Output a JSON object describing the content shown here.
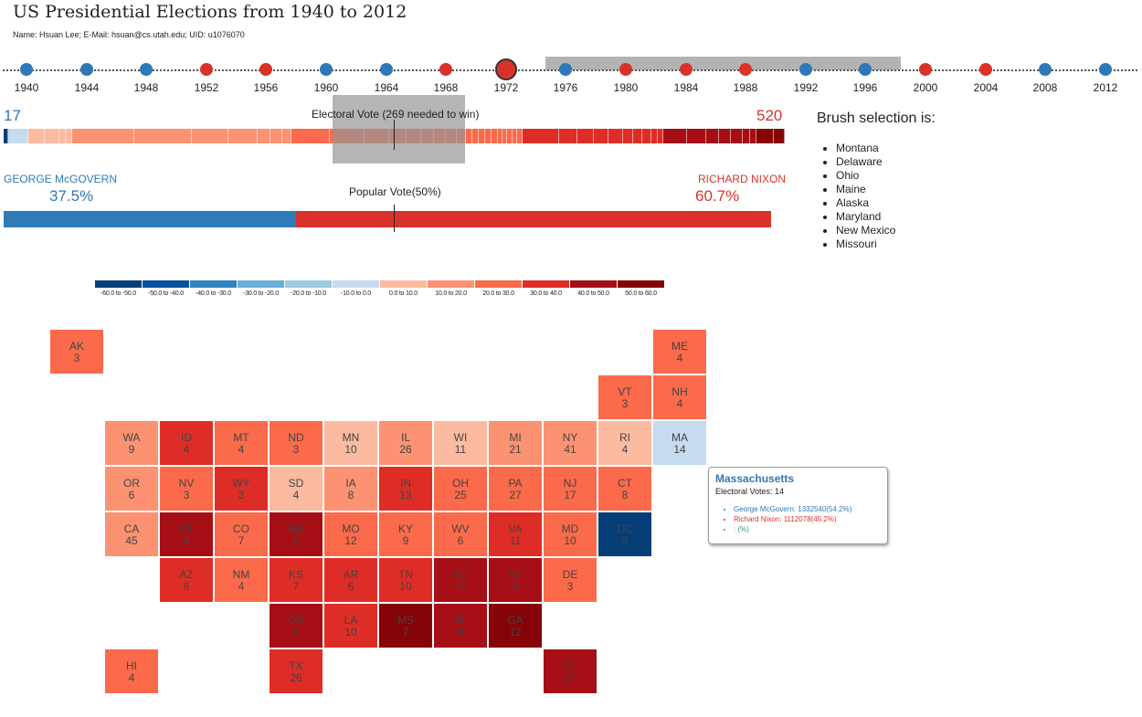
{
  "header": {
    "title": "US Presidential Elections from 1940 to 2012",
    "subtitle": "Name: Hsuan Lee; E-Mail: hsuan@cs.utah.edu; UID: u1076070"
  },
  "colors": {
    "dem": "#2f78b8",
    "rep": "#d9322a",
    "ind": "#3a9a76",
    "year_dem": "#2f78b8",
    "year_rep": "#d9322a"
  },
  "timeline": {
    "selected_year": "1972",
    "years": [
      {
        "year": "1940",
        "party": "D"
      },
      {
        "year": "1944",
        "party": "D"
      },
      {
        "year": "1948",
        "party": "D"
      },
      {
        "year": "1952",
        "party": "R"
      },
      {
        "year": "1956",
        "party": "R"
      },
      {
        "year": "1960",
        "party": "D"
      },
      {
        "year": "1964",
        "party": "D"
      },
      {
        "year": "1968",
        "party": "R"
      },
      {
        "year": "1972",
        "party": "R"
      },
      {
        "year": "1976",
        "party": "D"
      },
      {
        "year": "1980",
        "party": "R"
      },
      {
        "year": "1984",
        "party": "R"
      },
      {
        "year": "1988",
        "party": "R"
      },
      {
        "year": "1992",
        "party": "D"
      },
      {
        "year": "1996",
        "party": "D"
      },
      {
        "year": "2000",
        "party": "R"
      },
      {
        "year": "2004",
        "party": "R"
      },
      {
        "year": "2008",
        "party": "D"
      },
      {
        "year": "2012",
        "party": "D"
      }
    ]
  },
  "electoral": {
    "caption": "Electoral Vote (269 needed to win)",
    "dem_total": "17",
    "rep_total": "520"
  },
  "popular": {
    "caption": "Popular Vote(50%)",
    "dem_name": "GEORGE McGOVERN",
    "dem_pct": "37.5%",
    "rep_name": "RICHARD NIXON",
    "rep_pct": "60.7%",
    "dem_share": 0.381
  },
  "brush": {
    "heading": "Brush selection is:",
    "states": [
      "Montana",
      "Delaware",
      "Ohio",
      "Maine",
      "Alaska",
      "Maryland",
      "New Mexico",
      "Missouri"
    ]
  },
  "legend": [
    {
      "label": "-60.0 to -50.0",
      "color": "#063e78"
    },
    {
      "label": "-50.0 to -40.0",
      "color": "#08519c"
    },
    {
      "label": "-40.0 to -30.0",
      "color": "#3182bd"
    },
    {
      "label": "-30.0 to -20.0",
      "color": "#6baed6"
    },
    {
      "label": "-20.0 to -10.0",
      "color": "#9ecae1"
    },
    {
      "label": "-10.0 to 0.0",
      "color": "#c6dbef"
    },
    {
      "label": "0.0 to 10.0",
      "color": "#fcbba1"
    },
    {
      "label": "10.0 to 20.0",
      "color": "#fc9272"
    },
    {
      "label": "20.0 to 30.0",
      "color": "#fb6a4a"
    },
    {
      "label": "30.0 to 40.0",
      "color": "#de2d26"
    },
    {
      "label": "40.0 to 50.0",
      "color": "#a50f15"
    },
    {
      "label": "50.0 to 60.0",
      "color": "#860308"
    }
  ],
  "states": [
    {
      "abbr": "AK",
      "ev": "3",
      "bin": 8
    },
    {
      "abbr": "ME",
      "ev": "4",
      "bin": 8
    },
    {
      "abbr": "VT",
      "ev": "3",
      "bin": 8
    },
    {
      "abbr": "NH",
      "ev": "4",
      "bin": 8
    },
    {
      "abbr": "WA",
      "ev": "9",
      "bin": 7
    },
    {
      "abbr": "ID",
      "ev": "4",
      "bin": 9
    },
    {
      "abbr": "MT",
      "ev": "4",
      "bin": 8
    },
    {
      "abbr": "ND",
      "ev": "3",
      "bin": 8
    },
    {
      "abbr": "MN",
      "ev": "10",
      "bin": 6
    },
    {
      "abbr": "IL",
      "ev": "26",
      "bin": 7
    },
    {
      "abbr": "WI",
      "ev": "11",
      "bin": 6
    },
    {
      "abbr": "MI",
      "ev": "21",
      "bin": 7
    },
    {
      "abbr": "NY",
      "ev": "41",
      "bin": 7
    },
    {
      "abbr": "RI",
      "ev": "4",
      "bin": 6
    },
    {
      "abbr": "MA",
      "ev": "14",
      "bin": 5
    },
    {
      "abbr": "OR",
      "ev": "6",
      "bin": 7
    },
    {
      "abbr": "NV",
      "ev": "3",
      "bin": 8
    },
    {
      "abbr": "WY",
      "ev": "3",
      "bin": 9
    },
    {
      "abbr": "SD",
      "ev": "4",
      "bin": 6
    },
    {
      "abbr": "IA",
      "ev": "8",
      "bin": 7
    },
    {
      "abbr": "IN",
      "ev": "13",
      "bin": 9
    },
    {
      "abbr": "OH",
      "ev": "25",
      "bin": 8
    },
    {
      "abbr": "PA",
      "ev": "27",
      "bin": 8
    },
    {
      "abbr": "NJ",
      "ev": "17",
      "bin": 8
    },
    {
      "abbr": "CT",
      "ev": "8",
      "bin": 8
    },
    {
      "abbr": "CA",
      "ev": "45",
      "bin": 7
    },
    {
      "abbr": "UT",
      "ev": "4",
      "bin": 10
    },
    {
      "abbr": "CO",
      "ev": "7",
      "bin": 8
    },
    {
      "abbr": "NE",
      "ev": "5",
      "bin": 10
    },
    {
      "abbr": "MO",
      "ev": "12",
      "bin": 8
    },
    {
      "abbr": "KY",
      "ev": "9",
      "bin": 8
    },
    {
      "abbr": "WV",
      "ev": "6",
      "bin": 8
    },
    {
      "abbr": "VA",
      "ev": "11",
      "bin": 9
    },
    {
      "abbr": "MD",
      "ev": "10",
      "bin": 8
    },
    {
      "abbr": "DC",
      "ev": "3",
      "bin": 0
    },
    {
      "abbr": "AZ",
      "ev": "6",
      "bin": 9
    },
    {
      "abbr": "NM",
      "ev": "4",
      "bin": 8
    },
    {
      "abbr": "KS",
      "ev": "7",
      "bin": 9
    },
    {
      "abbr": "AR",
      "ev": "6",
      "bin": 9
    },
    {
      "abbr": "TN",
      "ev": "10",
      "bin": 9
    },
    {
      "abbr": "NC",
      "ev": "13",
      "bin": 10
    },
    {
      "abbr": "SC",
      "ev": "8",
      "bin": 10
    },
    {
      "abbr": "DE",
      "ev": "3",
      "bin": 8
    },
    {
      "abbr": "OK",
      "ev": "8",
      "bin": 10
    },
    {
      "abbr": "LA",
      "ev": "10",
      "bin": 9
    },
    {
      "abbr": "MS",
      "ev": "7",
      "bin": 11
    },
    {
      "abbr": "AL",
      "ev": "9",
      "bin": 10
    },
    {
      "abbr": "GA",
      "ev": "12",
      "bin": 11
    },
    {
      "abbr": "HI",
      "ev": "4",
      "bin": 8
    },
    {
      "abbr": "TX",
      "ev": "26",
      "bin": 9
    },
    {
      "abbr": "FL",
      "ev": "17",
      "bin": 10
    }
  ],
  "tooltip": {
    "state": "Massachusetts",
    "ev_line": "Electoral Votes: 14",
    "dem_line": "George McGovern: 1332540(54.2%)",
    "rep_line": "Richard Nixon: 1112078(45.2%)",
    "ind_line": ": (%)"
  }
}
